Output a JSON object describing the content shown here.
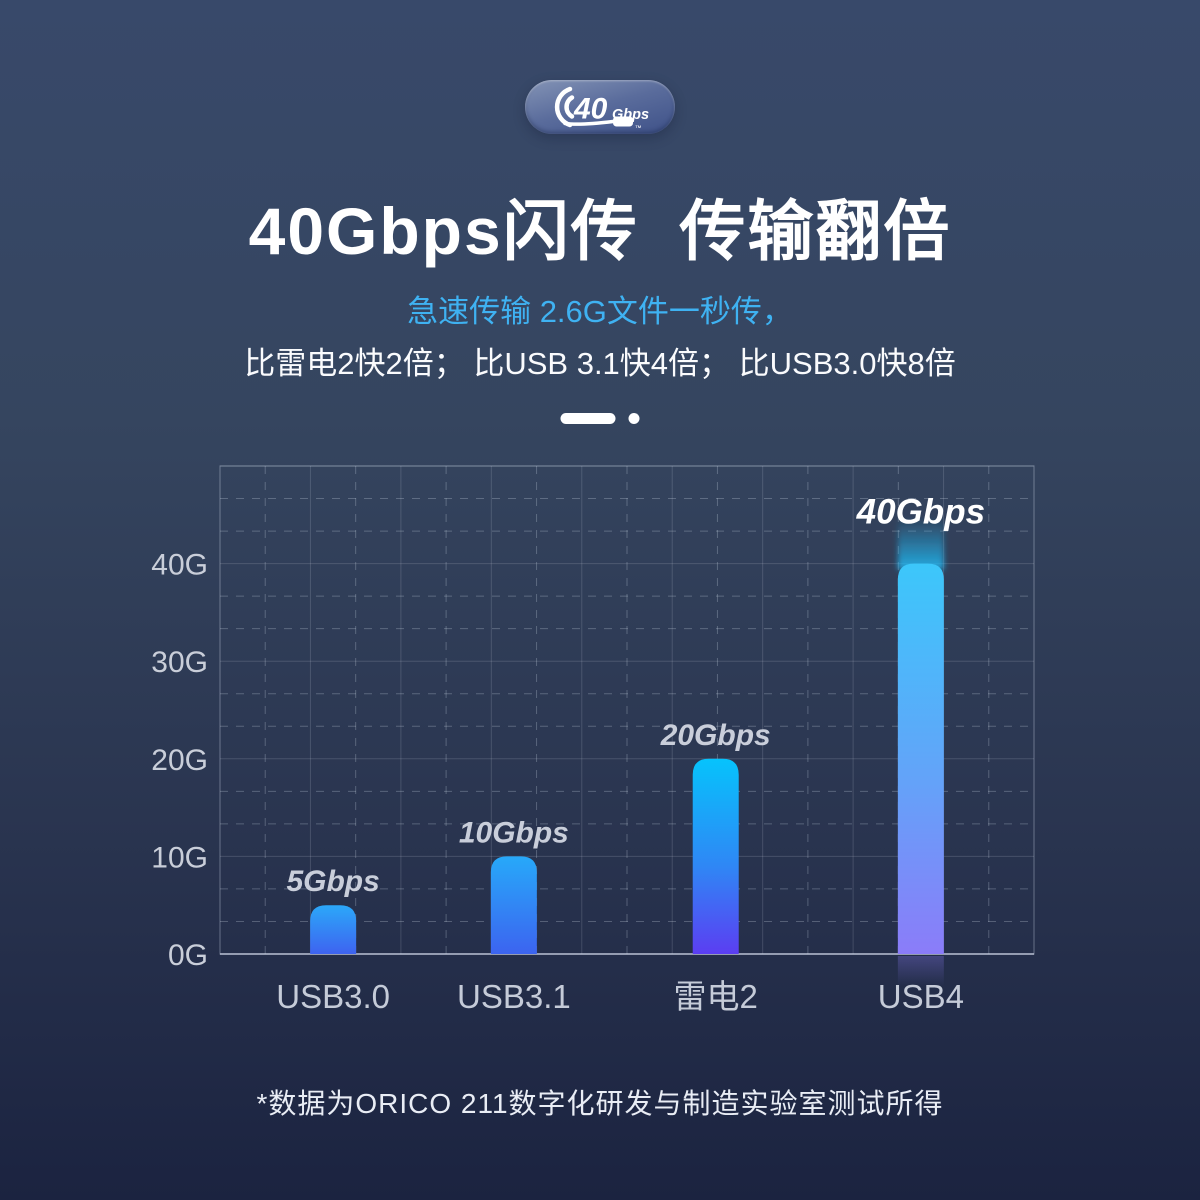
{
  "page": {
    "background_top": "#38496A",
    "background_bottom": "#1B2340"
  },
  "badge": {
    "number": "40",
    "unit": "Gbps",
    "trademark": "™"
  },
  "header": {
    "title": "40Gbps闪传  传输翻倍",
    "subtitle": "急速传输 2.6G文件一秒传，",
    "subtitle_color": "#3FB2F2",
    "comparison": "比雷电2快2倍； 比USB 3.1快4倍； 比USB3.0快8倍"
  },
  "footer": {
    "note": "*数据为ORICO 211数字化研发与制造实验室测试所得"
  },
  "chart_data": {
    "type": "bar",
    "categories": [
      "USB3.0",
      "USB3.1",
      "雷电2",
      "USB4"
    ],
    "values": [
      5,
      10,
      20,
      40
    ],
    "value_labels": [
      "5Gbps",
      "10Gbps",
      "20Gbps",
      "40Gbps"
    ],
    "ytick_labels": [
      "0G",
      "10G",
      "20G",
      "30G",
      "40G"
    ],
    "ylim": [
      0,
      50
    ],
    "ytick_step": 10,
    "grid": "on",
    "legend": "none",
    "highlight_index": 3,
    "bar_gradients": [
      [
        "#2BA8F9",
        "#3E63F0"
      ],
      [
        "#27A9F9",
        "#3C64F0"
      ],
      [
        "#06C3FC",
        "#2F87F5",
        "#5B3EF2"
      ],
      [
        "#3CC7FA",
        "#63A3F9",
        "#8B7CF9"
      ]
    ],
    "glow_color": "#20BDF8",
    "annotation_color": "#C9CEDA",
    "highlight_annotation_color": "#FFFFFF",
    "axis_label_color": "#C9CED9",
    "category_label_color": "#C5CBD8"
  }
}
